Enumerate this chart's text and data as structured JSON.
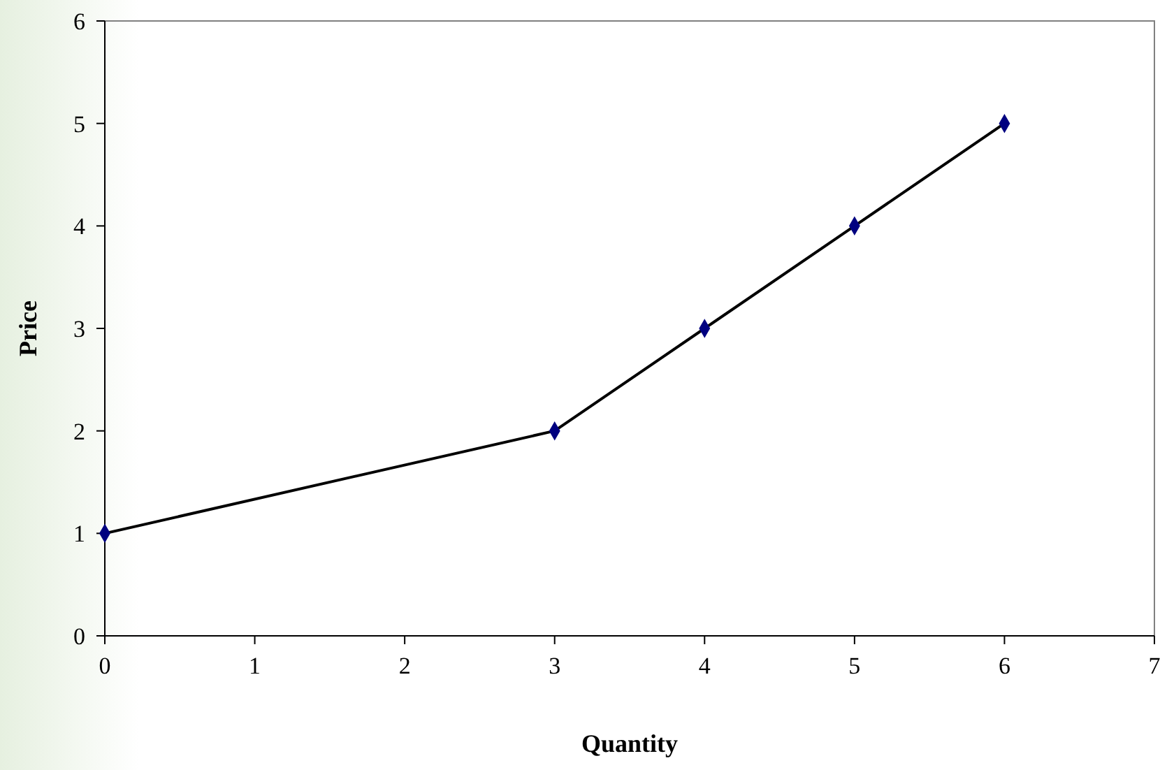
{
  "chart_data": {
    "type": "line",
    "xlabel": "Quantity",
    "ylabel": "Price",
    "x": [
      0,
      3,
      4,
      5,
      6
    ],
    "series": [
      {
        "color": "#000080",
        "values": [
          1,
          2,
          3,
          4,
          5
        ]
      }
    ],
    "xlim": [
      0,
      7
    ],
    "ylim": [
      0,
      6
    ],
    "xticks": [
      0,
      1,
      2,
      3,
      4,
      5,
      6,
      7
    ],
    "yticks": [
      0,
      1,
      2,
      3,
      4,
      5,
      6
    ],
    "marker": "diamond",
    "line_style": "solid"
  }
}
